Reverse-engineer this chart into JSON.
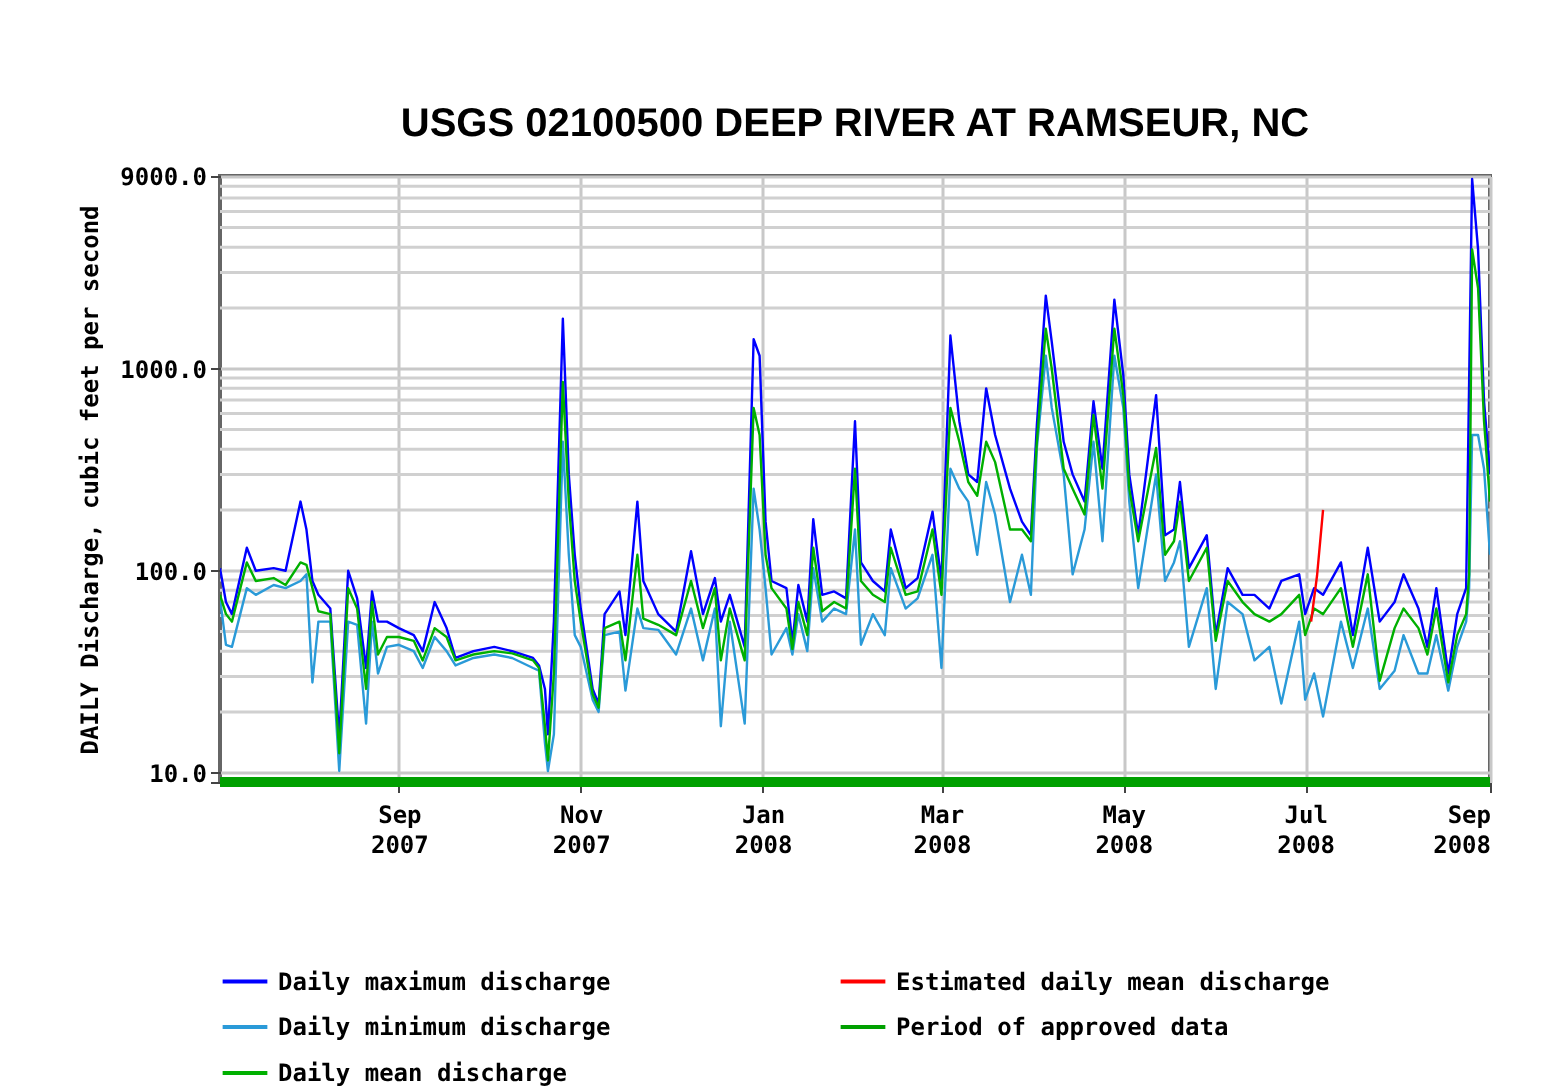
{
  "chart_data": {
    "type": "line",
    "title": "USGS 02100500 DEEP RIVER AT RAMSEUR, NC",
    "ylabel": "DAILY Discharge, cubic feet per second",
    "x": [
      "2007-07-03",
      "2007-07-05",
      "2007-07-07",
      "2007-07-12",
      "2007-07-15",
      "2007-07-21",
      "2007-07-25",
      "2007-07-30",
      "2007-08-01",
      "2007-08-03",
      "2007-08-05",
      "2007-08-09",
      "2007-08-12",
      "2007-08-15",
      "2007-08-18",
      "2007-08-21",
      "2007-08-23",
      "2007-08-25",
      "2007-08-28",
      "2007-09-01",
      "2007-09-06",
      "2007-09-09",
      "2007-09-13",
      "2007-09-17",
      "2007-09-20",
      "2007-09-26",
      "2007-10-03",
      "2007-10-09",
      "2007-10-16",
      "2007-10-18",
      "2007-10-20",
      "2007-10-21",
      "2007-10-23",
      "2007-10-26",
      "2007-10-28",
      "2007-10-30",
      "2007-11-01",
      "2007-11-05",
      "2007-11-07",
      "2007-11-09",
      "2007-11-14",
      "2007-11-16",
      "2007-11-20",
      "2007-11-22",
      "2007-11-27",
      "2007-12-03",
      "2007-12-08",
      "2007-12-12",
      "2007-12-16",
      "2007-12-18",
      "2007-12-21",
      "2007-12-26",
      "2007-12-29",
      "2007-12-31",
      "2008-01-02",
      "2008-01-04",
      "2008-01-09",
      "2008-01-11",
      "2008-01-13",
      "2008-01-16",
      "2008-01-18",
      "2008-01-21",
      "2008-01-25",
      "2008-01-29",
      "2008-02-01",
      "2008-02-03",
      "2008-02-07",
      "2008-02-11",
      "2008-02-13",
      "2008-02-18",
      "2008-02-22",
      "2008-02-27",
      "2008-03-01",
      "2008-03-04",
      "2008-03-07",
      "2008-03-10",
      "2008-03-13",
      "2008-03-16",
      "2008-03-19",
      "2008-03-24",
      "2008-03-28",
      "2008-03-31",
      "2008-04-02",
      "2008-04-05",
      "2008-04-07",
      "2008-04-11",
      "2008-04-14",
      "2008-04-18",
      "2008-04-21",
      "2008-04-24",
      "2008-04-28",
      "2008-05-01",
      "2008-05-03",
      "2008-05-06",
      "2008-05-12",
      "2008-05-15",
      "2008-05-18",
      "2008-05-20",
      "2008-05-23",
      "2008-05-29",
      "2008-06-01",
      "2008-06-05",
      "2008-06-10",
      "2008-06-14",
      "2008-06-19",
      "2008-06-23",
      "2008-06-29",
      "2008-07-01",
      "2008-07-04",
      "2008-07-07",
      "2008-07-13",
      "2008-07-17",
      "2008-07-22",
      "2008-07-26",
      "2008-07-31",
      "2008-08-03",
      "2008-08-08",
      "2008-08-11",
      "2008-08-14",
      "2008-08-18",
      "2008-08-21",
      "2008-08-24",
      "2008-08-25",
      "2008-08-26",
      "2008-08-28",
      "2008-08-30",
      "2008-09-01"
    ],
    "series": [
      {
        "name": "Daily maximum discharge",
        "color": "#0000ff",
        "values": [
          103,
          70,
          61,
          130,
          100,
          103,
          100,
          220,
          160,
          89,
          76,
          65,
          15,
          100,
          73,
          33,
          79,
          56,
          56,
          52,
          48,
          40,
          70,
          52,
          37,
          40,
          42,
          40,
          37,
          34,
          26,
          15.5,
          56,
          1770,
          300,
          120,
          65,
          26,
          22,
          61,
          79,
          48,
          220,
          89,
          61,
          50,
          125,
          61,
          92,
          56,
          76,
          42,
          1400,
          1160,
          175,
          89,
          82,
          44,
          85,
          56,
          180,
          76,
          79,
          73,
          550,
          110,
          89,
          79,
          160,
          82,
          92,
          196,
          89,
          1460,
          550,
          300,
          275,
          800,
          470,
          255,
          175,
          150,
          525,
          2300,
          1360,
          435,
          300,
          220,
          690,
          320,
          2200,
          930,
          300,
          150,
          740,
          150,
          160,
          275,
          103,
          150,
          48,
          103,
          76,
          76,
          65,
          89,
          96,
          61,
          82,
          76,
          110,
          48,
          130,
          56,
          70,
          96,
          65,
          42,
          82,
          31,
          61,
          82,
          860,
          8700,
          3900,
          690,
          300
        ]
      },
      {
        "name": "Daily minimum discharge",
        "color": "#2a9ad8",
        "values": [
          73,
          43,
          42,
          82,
          76,
          85,
          82,
          89,
          96,
          28,
          56,
          56,
          10.2,
          56,
          54,
          17.5,
          56,
          31,
          42,
          43,
          40,
          33,
          47,
          40,
          34,
          37,
          38.5,
          37,
          33,
          32,
          14,
          10.2,
          15.5,
          435,
          120,
          48,
          42,
          23,
          20,
          48,
          50,
          25.5,
          65,
          52,
          51,
          38.5,
          65,
          36,
          65,
          17,
          56,
          17.5,
          255,
          160,
          82,
          38.5,
          52,
          38.5,
          61,
          40,
          103,
          56,
          65,
          61,
          160,
          43,
          61,
          48,
          103,
          65,
          73,
          120,
          33,
          320,
          255,
          220,
          120,
          275,
          190,
          70,
          120,
          76,
          405,
          1160,
          640,
          300,
          96,
          160,
          435,
          140,
          1160,
          640,
          220,
          82,
          300,
          89,
          110,
          140,
          42,
          82,
          26,
          70,
          61,
          36,
          42,
          22,
          56,
          23,
          31,
          19,
          56,
          33,
          65,
          26,
          32,
          48,
          31,
          31,
          48,
          25.5,
          42,
          56,
          82,
          470,
          470,
          320,
          120
        ]
      },
      {
        "name": "Daily mean discharge",
        "color": "#00b000",
        "values": [
          76,
          61,
          56,
          110,
          89,
          92,
          85,
          110,
          107,
          82,
          63,
          61,
          12.5,
          82,
          65,
          26,
          70,
          38.5,
          47,
          47,
          45,
          36,
          52,
          47,
          36,
          38.5,
          40,
          39,
          36,
          33,
          17,
          11.5,
          31,
          860,
          220,
          89,
          56,
          24.5,
          21,
          52,
          56,
          36,
          120,
          58,
          54,
          48,
          89,
          52,
          82,
          36,
          65,
          36,
          640,
          470,
          120,
          82,
          65,
          41,
          70,
          48,
          130,
          63,
          70,
          65,
          320,
          89,
          76,
          70,
          130,
          76,
          79,
          160,
          76,
          640,
          435,
          275,
          235,
          435,
          345,
          160,
          160,
          140,
          435,
          1580,
          1000,
          320,
          255,
          190,
          590,
          255,
          1580,
          740,
          255,
          140,
          405,
          120,
          140,
          220,
          89,
          130,
          45,
          89,
          70,
          61,
          56,
          61,
          76,
          48,
          65,
          61,
          82,
          42,
          96,
          28.5,
          52,
          65,
          52,
          38.5,
          65,
          28,
          48,
          61,
          96,
          3900,
          2500,
          550,
          220
        ]
      },
      {
        "name": "Estimated daily mean discharge",
        "color": "#ff0000",
        "x": [
          "2008-07-03",
          "2008-07-05",
          "2008-07-07"
        ],
        "values": [
          56,
          95,
          200
        ]
      },
      {
        "name": "Period of approved data",
        "color": "#00a000",
        "x": [
          "2007-07-03",
          "2008-09-01"
        ],
        "values": [
          9,
          9
        ]
      }
    ],
    "xlim": [
      "2007-07-03",
      "2008-09-01"
    ],
    "ylim": [
      9,
      9000
    ],
    "xticks": [
      {
        "value": "2007-09-01",
        "label": "Sep 2007"
      },
      {
        "value": "2007-11-01",
        "label": "Nov 2007"
      },
      {
        "value": "2008-01-01",
        "label": "Jan 2008"
      },
      {
        "value": "2008-03-01",
        "label": "Mar 2008"
      },
      {
        "value": "2008-05-01",
        "label": "May 2008"
      },
      {
        "value": "2008-07-01",
        "label": "Jul 2008"
      },
      {
        "value": "2008-09-01",
        "label": "Sep 2008"
      }
    ],
    "yticks": [
      {
        "value": 9,
        "label": null
      },
      {
        "value": 10,
        "label": "10.0"
      },
      {
        "value": 100,
        "label": "100.0"
      },
      {
        "value": 1000,
        "label": "1000.0"
      },
      {
        "value": 9000,
        "label": "9000.0"
      }
    ],
    "log": true,
    "grid": true,
    "legend": "bottom"
  }
}
